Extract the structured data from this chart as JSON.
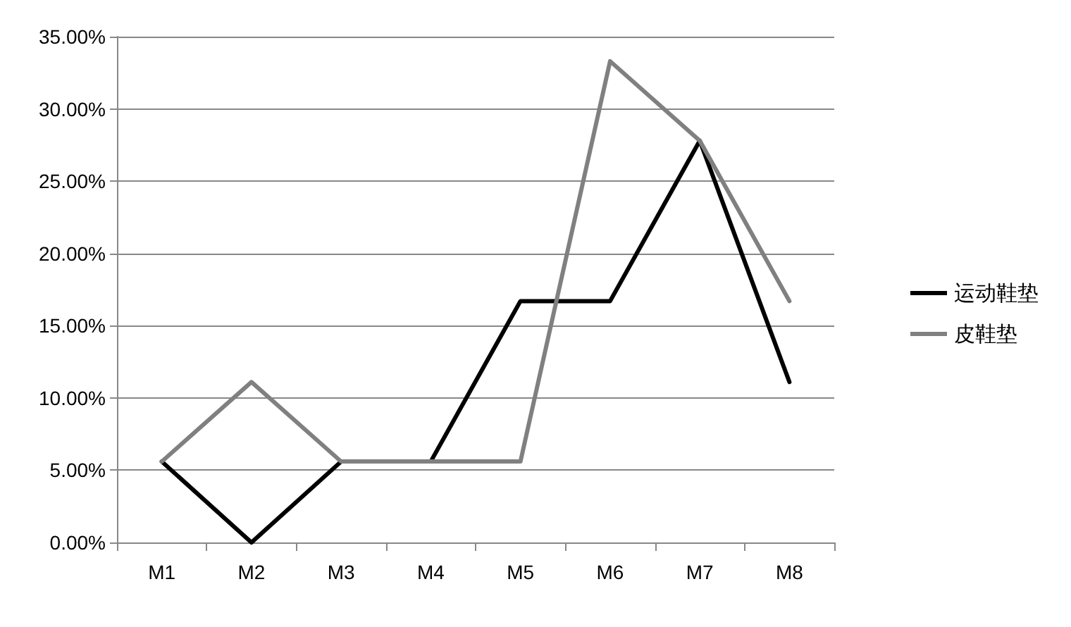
{
  "chart_data": {
    "type": "line",
    "categories": [
      "M1",
      "M2",
      "M3",
      "M4",
      "M5",
      "M6",
      "M7",
      "M8"
    ],
    "series": [
      {
        "name": "运动鞋垫",
        "color": "#000000",
        "values": [
          5.6,
          0,
          5.6,
          5.6,
          16.7,
          16.7,
          27.8,
          11.1
        ]
      },
      {
        "name": "皮鞋垫",
        "color": "#808080",
        "values": [
          5.6,
          11.1,
          5.6,
          5.6,
          5.6,
          33.3,
          27.8,
          16.7
        ]
      }
    ],
    "ylim": [
      0,
      35
    ],
    "yticks": [
      {
        "value": 0,
        "label": "0.00%"
      },
      {
        "value": 5,
        "label": "5.00%"
      },
      {
        "value": 10,
        "label": "10.00%"
      },
      {
        "value": 15,
        "label": "15.00%"
      },
      {
        "value": 20,
        "label": "20.00%"
      },
      {
        "value": 25,
        "label": "25.00%"
      },
      {
        "value": 30,
        "label": "30.00%"
      },
      {
        "value": 35,
        "label": "35.00%"
      }
    ],
    "grid": "y",
    "legend": "right",
    "marker": "none",
    "line_style": "solid"
  }
}
